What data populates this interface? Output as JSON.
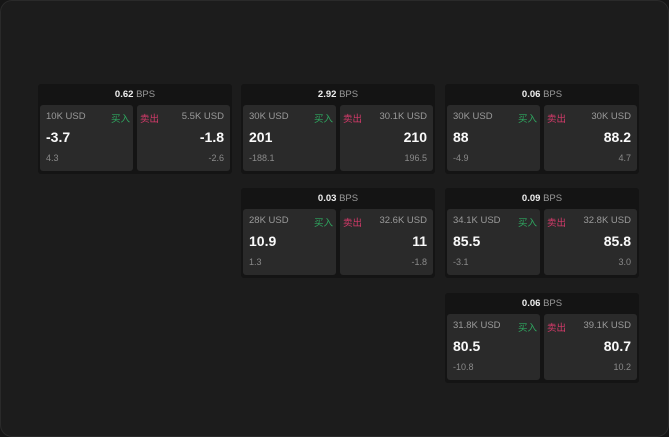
{
  "unit": "BPS",
  "buy_label": "买入",
  "sell_label": "卖出",
  "colors": {
    "buy": "#2fa860",
    "sell": "#d43a6a"
  },
  "cards": [
    {
      "spread": "0.62",
      "bid": {
        "size": "10K USD",
        "price": "-3.7",
        "change": "4.3"
      },
      "ask": {
        "size": "5.5K USD",
        "price": "-1.8",
        "change": "-2.6"
      }
    },
    {
      "spread": "2.92",
      "bid": {
        "size": "30K USD",
        "price": "201",
        "change": "-188.1"
      },
      "ask": {
        "size": "30.1K USD",
        "price": "210",
        "change": "196.5"
      }
    },
    {
      "spread": "0.06",
      "bid": {
        "size": "30K USD",
        "price": "88",
        "change": "-4.9"
      },
      "ask": {
        "size": "30K USD",
        "price": "88.2",
        "change": "4.7"
      }
    },
    {
      "spread": "0.03",
      "bid": {
        "size": "28K USD",
        "price": "10.9",
        "change": "1.3"
      },
      "ask": {
        "size": "32.6K USD",
        "price": "11",
        "change": "-1.8"
      }
    },
    {
      "spread": "0.09",
      "bid": {
        "size": "34.1K USD",
        "price": "85.5",
        "change": "-3.1"
      },
      "ask": {
        "size": "32.8K USD",
        "price": "85.8",
        "change": "3.0"
      }
    },
    {
      "spread": "0.06",
      "bid": {
        "size": "31.8K USD",
        "price": "80.5",
        "change": "-10.8"
      },
      "ask": {
        "size": "39.1K USD",
        "price": "80.7",
        "change": "10.2"
      }
    }
  ]
}
